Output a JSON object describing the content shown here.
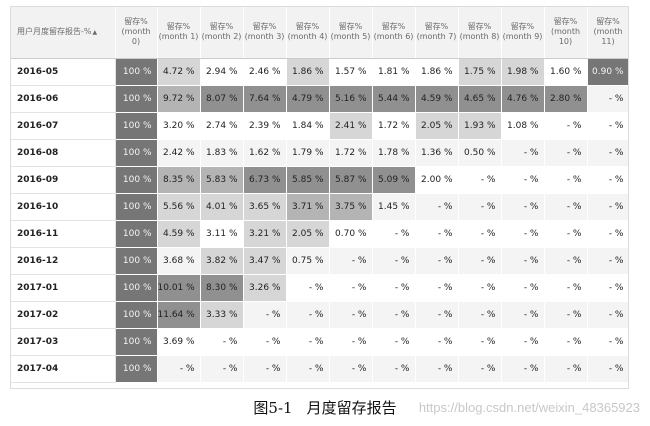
{
  "header": {
    "first": "用户月度留存报告-%",
    "sort_glyph": "▲",
    "columns": [
      {
        "title": "留存%",
        "sub": "(month 0)"
      },
      {
        "title": "留存%",
        "sub": "(month 1)"
      },
      {
        "title": "留存%",
        "sub": "(month 2)"
      },
      {
        "title": "留存%",
        "sub": "(month 3)"
      },
      {
        "title": "留存%",
        "sub": "(month 4)"
      },
      {
        "title": "留存%",
        "sub": "(month 5)"
      },
      {
        "title": "留存%",
        "sub": "(month 6)"
      },
      {
        "title": "留存%",
        "sub": "(month 7)"
      },
      {
        "title": "留存%",
        "sub": "(month 8)"
      },
      {
        "title": "留存%",
        "sub": "(month 9)"
      },
      {
        "title": "留存%",
        "sub": "(month 10)"
      },
      {
        "title": "留存%",
        "sub": "(month 11)"
      }
    ]
  },
  "rows": [
    {
      "label": "2016-05",
      "cells": [
        "100 %",
        "4.72 %",
        "2.94 %",
        "2.46 %",
        "1.86 %",
        "1.57 %",
        "1.81 %",
        "1.86 %",
        "1.75 %",
        "1.98 %",
        "1.60 %",
        "0.90 %"
      ],
      "shade": [
        4,
        1,
        0,
        0,
        1,
        0,
        0,
        0,
        1,
        1,
        0,
        4
      ]
    },
    {
      "label": "2016-06",
      "cells": [
        "100 %",
        "9.72 %",
        "8.07 %",
        "7.64 %",
        "4.79 %",
        "5.16 %",
        "5.44 %",
        "4.59 %",
        "4.65 %",
        "4.76 %",
        "2.80 %",
        "- %"
      ],
      "shade": [
        4,
        2,
        3,
        3,
        3,
        3,
        3,
        3,
        3,
        3,
        3,
        0
      ]
    },
    {
      "label": "2016-07",
      "cells": [
        "100 %",
        "3.20 %",
        "2.74 %",
        "2.39 %",
        "1.84 %",
        "2.41 %",
        "1.72 %",
        "2.05 %",
        "1.93 %",
        "1.08 %",
        "- %",
        "- %"
      ],
      "shade": [
        4,
        0,
        0,
        0,
        0,
        1,
        0,
        1,
        1,
        0,
        0,
        0
      ]
    },
    {
      "label": "2016-08",
      "cells": [
        "100 %",
        "2.42 %",
        "1.83 %",
        "1.62 %",
        "1.79 %",
        "1.72 %",
        "1.78 %",
        "1.36 %",
        "0.50 %",
        "- %",
        "- %",
        "- %"
      ],
      "shade": [
        4,
        0,
        0,
        0,
        0,
        0,
        0,
        0,
        0,
        0,
        0,
        0
      ]
    },
    {
      "label": "2016-09",
      "cells": [
        "100 %",
        "8.35 %",
        "5.83 %",
        "6.73 %",
        "5.85 %",
        "5.87 %",
        "5.09 %",
        "2.00 %",
        "- %",
        "- %",
        "- %",
        "- %"
      ],
      "shade": [
        4,
        2,
        2,
        3,
        3,
        3,
        3,
        0,
        0,
        0,
        0,
        0
      ]
    },
    {
      "label": "2016-10",
      "cells": [
        "100 %",
        "5.56 %",
        "4.01 %",
        "3.65 %",
        "3.71 %",
        "3.75 %",
        "1.45 %",
        "- %",
        "- %",
        "- %",
        "- %",
        "- %"
      ],
      "shade": [
        4,
        1,
        1,
        1,
        2,
        2,
        0,
        0,
        0,
        0,
        0,
        0
      ]
    },
    {
      "label": "2016-11",
      "cells": [
        "100 %",
        "4.59 %",
        "3.11 %",
        "3.21 %",
        "2.05 %",
        "0.70 %",
        "- %",
        "- %",
        "- %",
        "- %",
        "- %",
        "- %"
      ],
      "shade": [
        4,
        1,
        0,
        1,
        1,
        0,
        0,
        0,
        0,
        0,
        0,
        0
      ]
    },
    {
      "label": "2016-12",
      "cells": [
        "100 %",
        "3.68 %",
        "3.82 %",
        "3.47 %",
        "0.75 %",
        "- %",
        "- %",
        "- %",
        "- %",
        "- %",
        "- %",
        "- %"
      ],
      "shade": [
        4,
        0,
        1,
        1,
        0,
        0,
        0,
        0,
        0,
        0,
        0,
        0
      ]
    },
    {
      "label": "2017-01",
      "cells": [
        "100 %",
        "10.01 %",
        "8.30 %",
        "3.26 %",
        "- %",
        "- %",
        "- %",
        "- %",
        "- %",
        "- %",
        "- %",
        "- %"
      ],
      "shade": [
        4,
        3,
        3,
        1,
        0,
        0,
        0,
        0,
        0,
        0,
        0,
        0
      ]
    },
    {
      "label": "2017-02",
      "cells": [
        "100 %",
        "11.64 %",
        "3.33 %",
        "- %",
        "- %",
        "- %",
        "- %",
        "- %",
        "- %",
        "- %",
        "- %",
        "- %"
      ],
      "shade": [
        4,
        3,
        1,
        0,
        0,
        0,
        0,
        0,
        0,
        0,
        0,
        0
      ]
    },
    {
      "label": "2017-03",
      "cells": [
        "100 %",
        "3.69 %",
        "- %",
        "- %",
        "- %",
        "- %",
        "- %",
        "- %",
        "- %",
        "- %",
        "- %",
        "- %"
      ],
      "shade": [
        4,
        0,
        0,
        0,
        0,
        0,
        0,
        0,
        0,
        0,
        0,
        0
      ]
    },
    {
      "label": "2017-04",
      "cells": [
        "100 %",
        "- %",
        "- %",
        "- %",
        "- %",
        "- %",
        "- %",
        "- %",
        "- %",
        "- %",
        "- %",
        "- %"
      ],
      "shade": [
        4,
        0,
        0,
        0,
        0,
        0,
        0,
        0,
        0,
        0,
        0,
        0
      ]
    }
  ],
  "caption": {
    "number": "图5-1",
    "text": "月度留存报告"
  },
  "watermark": "https://blog.csdn.net/weixin_48365923"
}
